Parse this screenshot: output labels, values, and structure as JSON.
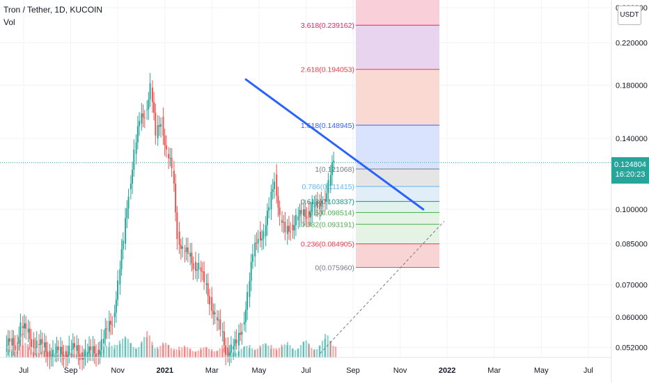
{
  "header": {
    "title": "Tron / Tether, 1D, KUCOIN",
    "vol_label": "Vol"
  },
  "currency_button": "USDT",
  "last_price": {
    "price": "0.124804",
    "countdown": "16:20:23"
  },
  "colors": {
    "up": "#26a69a",
    "down": "#ef5350",
    "trendline": "#2962ff",
    "axis_text": "#131722",
    "price_line": "#26a69a"
  },
  "chart_data": {
    "type": "candlestick",
    "x_axis": {
      "ticks": [
        "Jul",
        "Sep",
        "Nov",
        "2021",
        "Mar",
        "May",
        "Jul",
        "Sep",
        "Nov",
        "2022",
        "Mar",
        "May",
        "Jul"
      ],
      "bold": [
        "2021",
        "2022"
      ]
    },
    "y_axis": {
      "scale": "log",
      "ticks": [
        "0.260000",
        "0.220000",
        "0.180000",
        "0.140000",
        "0.100000",
        "0.085000",
        "0.070000",
        "0.060000",
        "0.052000"
      ]
    },
    "last_price": 0.124804,
    "trendline": {
      "from": {
        "date": "2021-04-15",
        "price": 0.185
      },
      "to": {
        "date": "2021-12-01",
        "price": 0.1
      }
    },
    "dashed_line": {
      "from": {
        "date": "2021-07-20",
        "price": 0.0505
      },
      "to": {
        "date": "2021-12-28",
        "price": 0.0945
      }
    },
    "fibonacci": [
      {
        "label": "0(0.075960)",
        "price": 0.07596,
        "color": "#787b86"
      },
      {
        "label": "0.236(0.084905)",
        "price": 0.084905,
        "color": "#f23645"
      },
      {
        "label": "0.382(0.093191)",
        "price": 0.093191,
        "color": "#4caf50"
      },
      {
        "label": "0.5(0.098514)",
        "price": 0.098514,
        "color": "#4caf50"
      },
      {
        "label": "0.618(0.103837)",
        "price": 0.103837,
        "color": "#089981"
      },
      {
        "label": "0.786(0.111415)",
        "price": 0.111415,
        "color": "#64b5f6"
      },
      {
        "label": "1(0.121068)",
        "price": 0.121068,
        "color": "#787b86"
      },
      {
        "label": "1.618(0.148945)",
        "price": 0.148945,
        "color": "#2962ff"
      },
      {
        "label": "2.618(0.194053)",
        "price": 0.194053,
        "color": "#f23645"
      },
      {
        "label": "3.618(0.239162)",
        "price": 0.239162,
        "color": "#e91e63"
      }
    ],
    "weekly_close": [
      0.0525,
      0.0532,
      0.0575,
      0.0558,
      0.054,
      0.0528,
      0.052,
      0.0512,
      0.0505,
      0.0505,
      0.051,
      0.0515,
      0.0512,
      0.0508,
      0.0505,
      0.0505,
      0.0515,
      0.053,
      0.056,
      0.06,
      0.07,
      0.085,
      0.11,
      0.13,
      0.15,
      0.16,
      0.178,
      0.14,
      0.155,
      0.13,
      0.12,
      0.09,
      0.082,
      0.08,
      0.078,
      0.076,
      0.07,
      0.066,
      0.06,
      0.056,
      0.052,
      0.0515,
      0.0525,
      0.058,
      0.066,
      0.08,
      0.09,
      0.088,
      0.1,
      0.118,
      0.095,
      0.089,
      0.093,
      0.095,
      0.097,
      0.099,
      0.101,
      0.1,
      0.105,
      0.112,
      0.125
    ],
    "volume": [
      0.35,
      0.42,
      1,
      0.55,
      0.4,
      0.3,
      0.28,
      0.25,
      0.22,
      0.2,
      0.22,
      0.25,
      0.22,
      0.2,
      0.2,
      0.22,
      0.25,
      0.3,
      0.45,
      0.65,
      0.9,
      0.8,
      0.75,
      0.7,
      0.65,
      0.8,
      1,
      0.7,
      0.6,
      0.55,
      0.5,
      0.6,
      0.45,
      0.4,
      0.42,
      0.45,
      0.4,
      0.38,
      0.45,
      0.5,
      0.4,
      0.3,
      0.35,
      0.4,
      0.45,
      0.55,
      0.6,
      0.55,
      0.5,
      0.65,
      0.55,
      0.5,
      0.6,
      0.55,
      0.6,
      0.65,
      0.55,
      0.6,
      0.7,
      0.9,
      0.8
    ]
  }
}
